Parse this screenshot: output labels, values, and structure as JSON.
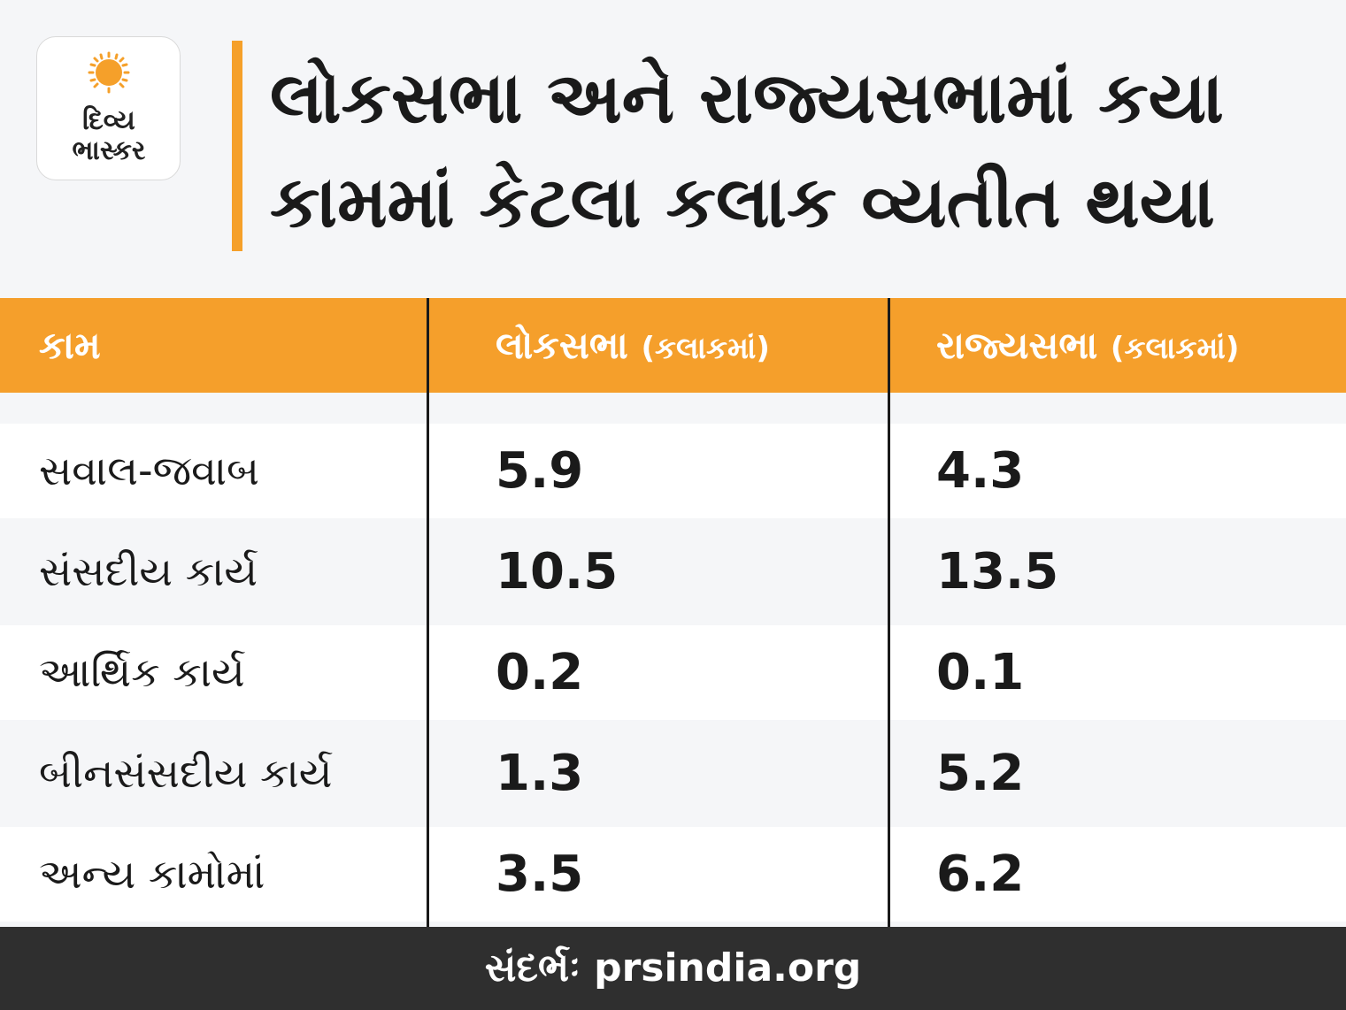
{
  "brand": {
    "logo_line1": "દિવ્ય",
    "logo_line2": "ભાસ્કર",
    "accent_color": "#f59f2b"
  },
  "title": "લોકસભા અને રાજ્યસભામાં કયા કામમાં કેટલા કલાક વ્યતીત થયા",
  "chart_data": {
    "type": "table",
    "columns": [
      {
        "name": "કામ",
        "unit": ""
      },
      {
        "name": "લોકસભા",
        "unit": "(કલાકમાં)"
      },
      {
        "name": "રાજ્યસભા",
        "unit": "(કલાકમાં)"
      }
    ],
    "rows": [
      {
        "label": "સવાલ-જવાબ",
        "lok_sabha": "5.9",
        "rajya_sabha": "4.3"
      },
      {
        "label": "સંસદીય કાર્ય",
        "lok_sabha": "10.5",
        "rajya_sabha": "13.5"
      },
      {
        "label": "આર્થિક કાર્ય",
        "lok_sabha": "0.2",
        "rajya_sabha": "0.1"
      },
      {
        "label": "બીનસંસદીય કાર્ય",
        "lok_sabha": "1.3",
        "rajya_sabha": "5.2"
      },
      {
        "label": "અન્ય કામોમાં",
        "lok_sabha": "3.5",
        "rajya_sabha": "6.2"
      }
    ]
  },
  "footer": {
    "source": "સંદર્ભઃ prsindia.org"
  }
}
